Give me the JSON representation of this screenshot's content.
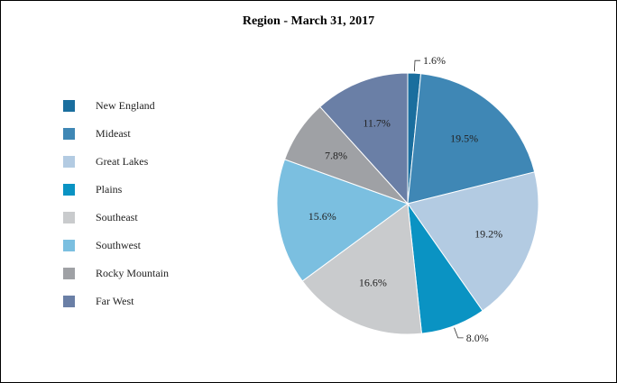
{
  "chart_data": {
    "type": "pie",
    "title": "Region - March 31, 2017",
    "categories": [
      "New England",
      "Mideast",
      "Great Lakes",
      "Plains",
      "Southeast",
      "Southwest",
      "Rocky Mountain",
      "Far West"
    ],
    "values": [
      1.6,
      19.5,
      19.2,
      8.0,
      16.6,
      15.6,
      7.8,
      11.7
    ],
    "labels": [
      "1.6%",
      "19.5%",
      "19.2%",
      "8.0%",
      "16.6%",
      "15.6%",
      "7.8%",
      "11.7%"
    ],
    "colors": [
      "#1a6e9e",
      "#3f87b5",
      "#b3cbe2",
      "#0a93c3",
      "#c9cbcd",
      "#7bbfe0",
      "#9fa1a5",
      "#6a7fa6"
    ],
    "legend_position": "left",
    "start_angle": "12 o'clock, clockwise"
  }
}
